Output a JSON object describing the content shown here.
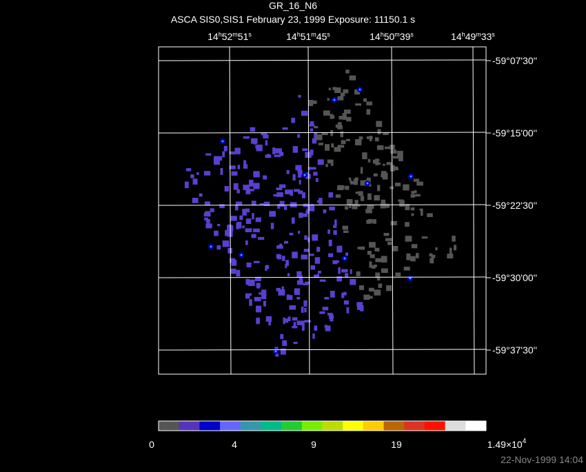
{
  "title": "GR_16_N6",
  "subtitle": "ASCA SIS0,SIS1 February 23, 1999 Exposure: 11150.1 s",
  "ra_units": [
    "h",
    "m",
    "s"
  ],
  "ra_labels": [
    {
      "hours": "14",
      "minutes": "52",
      "seconds": "51"
    },
    {
      "hours": "14",
      "minutes": "51",
      "seconds": "45"
    },
    {
      "hours": "14",
      "minutes": "50",
      "seconds": "39"
    },
    {
      "hours": "14",
      "minutes": "49",
      "seconds": "33"
    }
  ],
  "dec_labels": [
    "-59°07'30''",
    "-59°15'00''",
    "-59°22'30''",
    "-59°30'00''",
    "-59°37'30''"
  ],
  "colorbar": {
    "colors": [
      "#555555",
      "#5533bb",
      "#0000cc",
      "#6666ff",
      "#3399aa",
      "#00bb88",
      "#22cc33",
      "#77ee00",
      "#bbdd00",
      "#ffff00",
      "#ffcc00",
      "#bb6600",
      "#dd3322",
      "#ff1100",
      "#dddddd",
      "#ffffff"
    ],
    "tick_labels": [
      {
        "text": "0"
      },
      {
        "text": "4"
      },
      {
        "text": "9"
      },
      {
        "text": "19"
      },
      {
        "mantissa": "1.49×10",
        "exponent": "4"
      }
    ]
  },
  "timestamp": "22-Nov-1999 14:04"
}
